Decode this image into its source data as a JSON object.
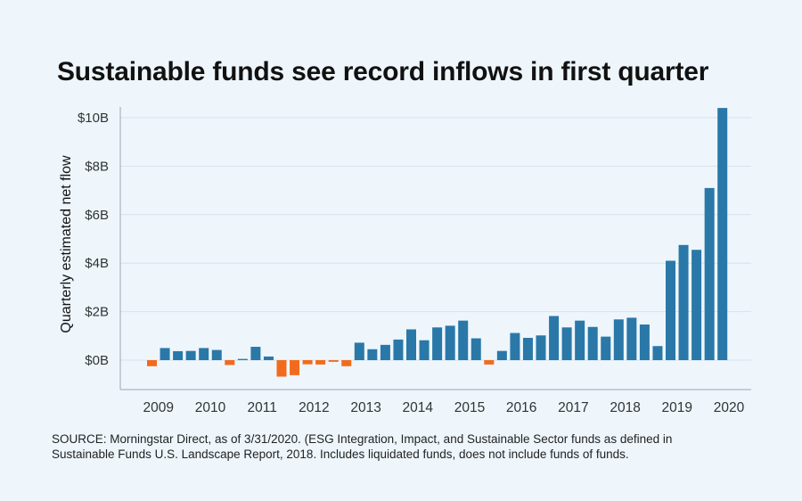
{
  "title": "Sustainable funds see record inflows in first quarter",
  "source_lines": [
    "SOURCE: Morningstar Direct, as of 3/31/2020. (ESG Integration, Impact, and Sustainable Sector funds as defined in",
    "Sustainable Funds U.S. Landscape Report, 2018. Includes liquidated funds, does not include funds of funds."
  ],
  "colors": {
    "positive": "#2a78a8",
    "negative": "#f26b1d",
    "grid": "#d5e1ec",
    "axis": "#9aa7b3",
    "background": "#eef6fc"
  },
  "chart_data": {
    "type": "bar",
    "ylabel": "Quarterly estimated net flow",
    "xlabel": "",
    "ylim": [
      -1.2,
      10.5
    ],
    "y_ticks": [
      0,
      2,
      4,
      6,
      8,
      10
    ],
    "y_tick_labels": [
      "$0B",
      "$2B",
      "$4B",
      "$6B",
      "$8B",
      "$10B"
    ],
    "x_tick_labels": [
      "2009",
      "2010",
      "2011",
      "2012",
      "2013",
      "2014",
      "2015",
      "2016",
      "2017",
      "2018",
      "2019",
      "2020"
    ],
    "grid": true,
    "unit": "$B",
    "categories": [
      "2009 Q1",
      "2009 Q2",
      "2009 Q3",
      "2009 Q4",
      "2010 Q1",
      "2010 Q2",
      "2010 Q3",
      "2010 Q4",
      "2011 Q1",
      "2011 Q2",
      "2011 Q3",
      "2011 Q4",
      "2012 Q1",
      "2012 Q2",
      "2012 Q3",
      "2012 Q4",
      "2013 Q1",
      "2013 Q2",
      "2013 Q3",
      "2013 Q4",
      "2014 Q1",
      "2014 Q2",
      "2014 Q3",
      "2014 Q4",
      "2015 Q1",
      "2015 Q2",
      "2015 Q3",
      "2015 Q4",
      "2016 Q1",
      "2016 Q2",
      "2016 Q3",
      "2016 Q4",
      "2017 Q1",
      "2017 Q2",
      "2017 Q3",
      "2017 Q4",
      "2018 Q1",
      "2018 Q2",
      "2018 Q3",
      "2018 Q4",
      "2019 Q1",
      "2019 Q2",
      "2019 Q3",
      "2019 Q4",
      "2020 Q1"
    ],
    "values": [
      -0.25,
      0.5,
      0.37,
      0.38,
      0.5,
      0.42,
      -0.2,
      0.05,
      0.55,
      0.15,
      -0.68,
      -0.62,
      -0.17,
      -0.18,
      -0.07,
      -0.25,
      0.72,
      0.45,
      0.63,
      0.85,
      1.27,
      0.82,
      1.35,
      1.42,
      1.63,
      0.9,
      -0.18,
      0.38,
      1.12,
      0.92,
      1.02,
      1.82,
      1.35,
      1.63,
      1.37,
      0.97,
      1.68,
      1.75,
      1.47,
      0.58,
      4.1,
      4.75,
      4.55,
      7.1,
      10.4
    ]
  }
}
